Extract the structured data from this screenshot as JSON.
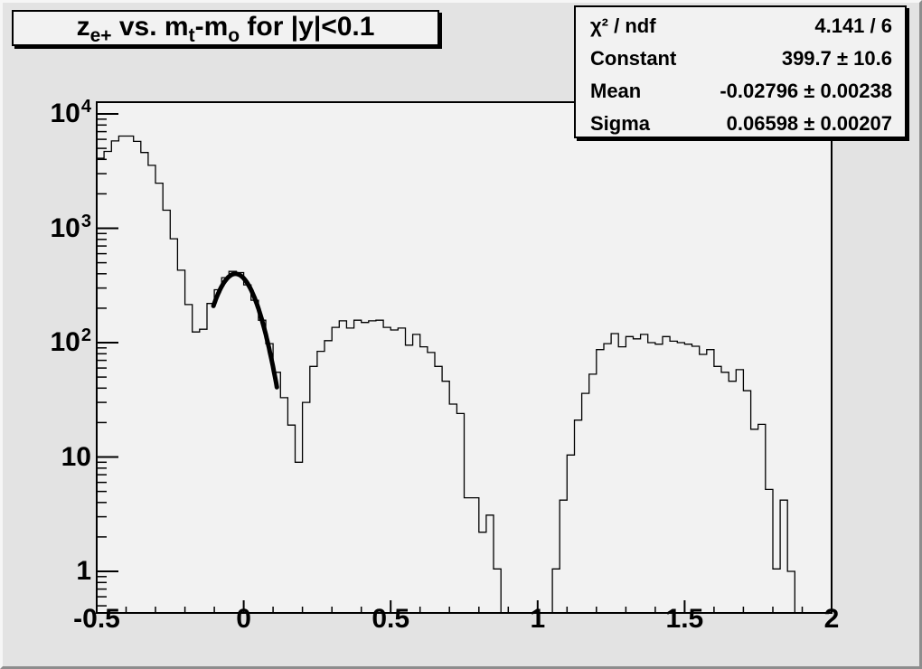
{
  "title": {
    "segments": [
      {
        "text": "z"
      },
      {
        "text": "e+",
        "sub": true
      },
      {
        "text": " vs. m"
      },
      {
        "text": "t",
        "sub": true
      },
      {
        "text": "-m"
      },
      {
        "text": "o",
        "sub": true
      },
      {
        "text": " for |y|<0.1"
      }
    ],
    "plain": "z_e+ vs. m_t-m_o for |y|<0.1"
  },
  "stats_box": {
    "rows": [
      {
        "label": "χ² / ndf",
        "value": "4.141 / 6"
      },
      {
        "label": "Constant",
        "value": "399.7 ± 10.6"
      },
      {
        "label": "Mean",
        "value": "-0.02796 ± 0.00238"
      },
      {
        "label": "Sigma",
        "value": "0.06598 ± 0.00207"
      }
    ]
  },
  "axes": {
    "x": {
      "min": -0.5,
      "max": 2,
      "major_tick_step": 0.5,
      "minor_tick_step": 0.1,
      "tick_labels": [
        "-0.5",
        "0",
        "0.5",
        "1",
        "1.5",
        "2"
      ],
      "tick_values": [
        -0.5,
        0,
        0.5,
        1,
        1.5,
        2
      ]
    },
    "y": {
      "scale": "log",
      "min": 0.43,
      "max": 12700,
      "tick_values": [
        1,
        10,
        100,
        1000,
        10000
      ],
      "tick_labels": [
        {
          "base": "1",
          "exp": ""
        },
        {
          "base": "10",
          "exp": ""
        },
        {
          "base": "10",
          "exp": "2"
        },
        {
          "base": "10",
          "exp": "3"
        },
        {
          "base": "10",
          "exp": "4"
        }
      ]
    }
  },
  "chart_data": {
    "type": "bar",
    "style": "step-histogram",
    "title": "z_e+ vs. m_t-m_o for |y|<0.1",
    "xlabel": "",
    "ylabel": "",
    "x_start": -0.5,
    "bin_width": 0.025,
    "n_bins": 100,
    "xlim": [
      -0.5,
      2
    ],
    "ylim_log": [
      0.43,
      12700
    ],
    "grid": false,
    "legend": false,
    "values": [
      4100,
      4700,
      5800,
      6400,
      6400,
      5750,
      4600,
      3550,
      2480,
      1440,
      810,
      430,
      215,
      124,
      131,
      220,
      290,
      370,
      420,
      410,
      320,
      235,
      157,
      98,
      55,
      33,
      19,
      9,
      30,
      62,
      84,
      104,
      136,
      155,
      134,
      157,
      150,
      155,
      157,
      136,
      129,
      134,
      95,
      118,
      92,
      82,
      62,
      46,
      29,
      24,
      4.4,
      4.4,
      2.2,
      3.1,
      1.05,
      0,
      0,
      0,
      0,
      0,
      0,
      0,
      1.05,
      4.2,
      10.4,
      21,
      36,
      53,
      87,
      98,
      120,
      92,
      113,
      108,
      118,
      100,
      97,
      113,
      103,
      100,
      97,
      93,
      79,
      87,
      62,
      55,
      46,
      58,
      38,
      17.5,
      19.3,
      5.2,
      1.05,
      4.2,
      1,
      0,
      0,
      0,
      0,
      0
    ],
    "fit": {
      "type": "gaussian",
      "constant": 399.7,
      "mean": -0.02796,
      "sigma": 0.06598,
      "chi2": 4.141,
      "ndf": 6,
      "draw_range": [
        -0.103,
        0.113
      ]
    },
    "colors": {
      "histogram_line": "#000000",
      "fit_line": "#000000",
      "frame_background": "#f2f2f2",
      "canvas_background": "#e3e3e3",
      "box_background": "#f2f2f2",
      "text": "#000000"
    }
  }
}
